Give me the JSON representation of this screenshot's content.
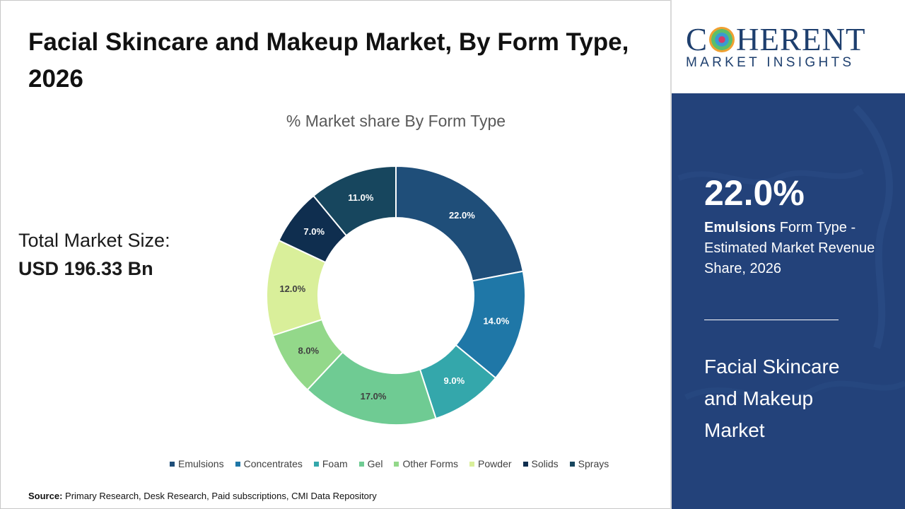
{
  "title": "Facial Skincare and Makeup Market, By Form Type, 2026",
  "total": {
    "label": "Total Market Size:",
    "value": "USD 196.33 Bn"
  },
  "source": {
    "label": "Source:",
    "text": "Primary Research, Desk Research, Paid subscriptions, CMI Data Repository"
  },
  "logo": {
    "main_left": "C",
    "main_right": "HERENT",
    "sub": "MARKET INSIGHTS"
  },
  "highlight": {
    "value": "22.0%",
    "segment": "Emulsions",
    "desc_rest": " Form Type - Estimated Market Revenue Share, 2026",
    "market": "Facial Skincare and Makeup Market"
  },
  "colors": {
    "panel": "#23427a",
    "logo": "#1e3f6e"
  },
  "chart_data": {
    "type": "pie",
    "title": "% Market share By Form Type",
    "categories": [
      "Emulsions",
      "Concentrates",
      "Foam",
      "Gel",
      "Other Forms",
      "Powder",
      "Solids",
      "Sprays"
    ],
    "values": [
      22.0,
      14.0,
      9.0,
      17.0,
      8.0,
      12.0,
      7.0,
      11.0
    ],
    "labels": [
      "22.0%",
      "14.0%",
      "9.0%",
      "17.0%",
      "8.0%",
      "12.0%",
      "7.0%",
      "11.0%"
    ],
    "colors": [
      "#1f4e79",
      "#1f77a7",
      "#34a7ab",
      "#6fcb93",
      "#93d88a",
      "#d9ef9a",
      "#0f2e4f",
      "#17465e"
    ],
    "label_colors": [
      "#ffffff",
      "#ffffff",
      "#ffffff",
      "#404040",
      "#404040",
      "#404040",
      "#ffffff",
      "#ffffff"
    ],
    "legend_position": "bottom"
  }
}
